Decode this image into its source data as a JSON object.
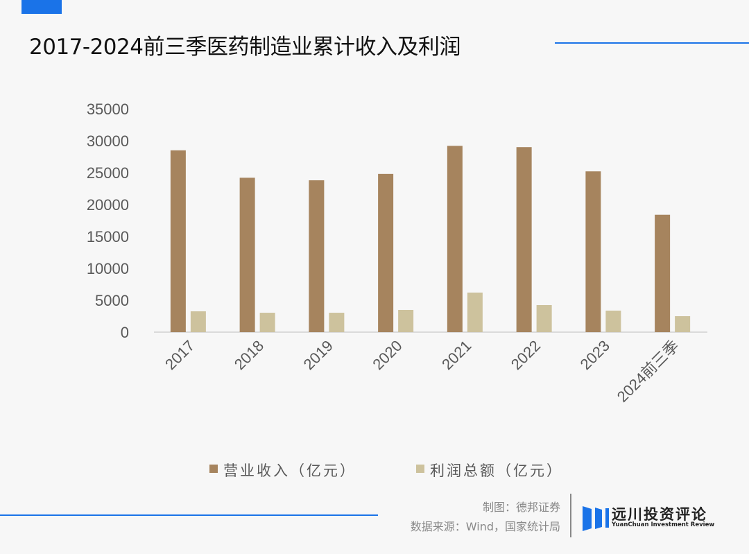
{
  "header": {
    "title": "2017-2024前三季医药制造业累计收入及利润"
  },
  "chart_data": {
    "type": "bar",
    "title": "2017-2024前三季医药制造业累计收入及利润",
    "categories": [
      "2017",
      "2018",
      "2019",
      "2020",
      "2021",
      "2022",
      "2023",
      "2024前三季"
    ],
    "series": [
      {
        "name": "营业收入（亿元）",
        "color": "#a6845e",
        "values": [
          28500,
          24200,
          23800,
          24800,
          29200,
          29000,
          25200,
          18400
        ]
      },
      {
        "name": "利润总额（亿元）",
        "color": "#cdc29d",
        "values": [
          3260,
          3040,
          3040,
          3480,
          6200,
          4240,
          3370,
          2500
        ]
      }
    ],
    "yticks": [
      "0",
      "5000",
      "10000",
      "15000",
      "20000",
      "25000",
      "30000",
      "35000"
    ],
    "ylim": [
      0,
      35000
    ],
    "grid": false,
    "legend": "bottom"
  },
  "footer": {
    "maker": "制图：德邦证券",
    "source": "数据来源：Wind，国家统计局",
    "logo_cn": "远川投资评论",
    "logo_en": "YuanChuan Investment Review"
  }
}
